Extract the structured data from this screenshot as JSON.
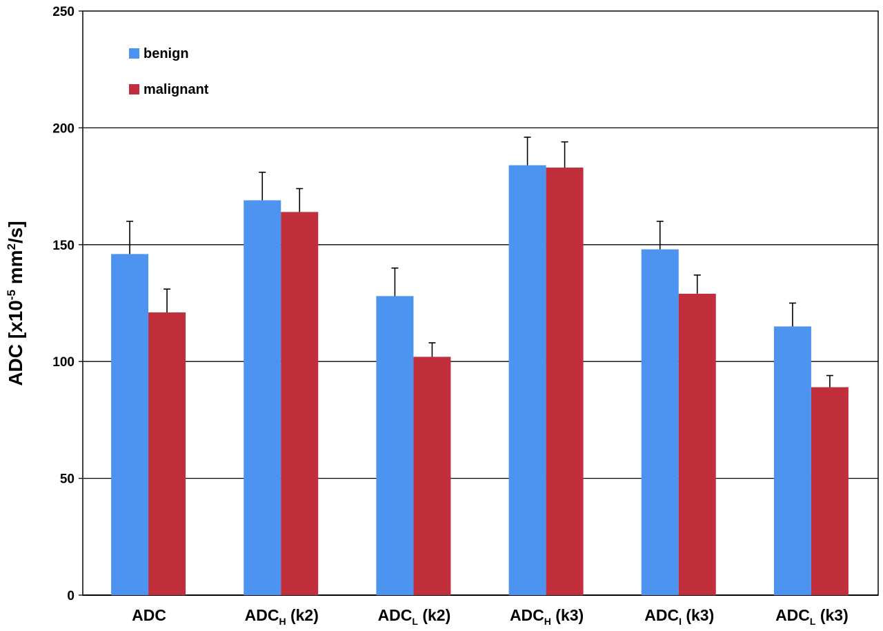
{
  "chart_data": {
    "type": "bar",
    "ylabel": {
      "prefix": "ADC [x10",
      "exp": "-5",
      "mid": " mm",
      "exp2": "2",
      "suffix": "/s]"
    },
    "xlabel": "",
    "ylim": [
      0,
      250
    ],
    "yticks": [
      0,
      50,
      100,
      150,
      200,
      250
    ],
    "grid": true,
    "legend_position": "top-left",
    "categories": [
      {
        "main": "ADC",
        "sub": "",
        "rest": ""
      },
      {
        "main": "ADC",
        "sub": "H",
        "rest": " (k2)"
      },
      {
        "main": "ADC",
        "sub": "L",
        "rest": " (k2)"
      },
      {
        "main": "ADC",
        "sub": "H",
        "rest": " (k3)"
      },
      {
        "main": "ADC",
        "sub": "I",
        "rest": " (k3)"
      },
      {
        "main": "ADC",
        "sub": "L",
        "rest": " (k3)"
      }
    ],
    "series": [
      {
        "name": "benign",
        "color": "#4d94f0",
        "values": [
          146,
          169,
          128,
          184,
          148,
          115
        ],
        "errors": [
          14,
          12,
          12,
          12,
          12,
          10
        ]
      },
      {
        "name": "malignant",
        "color": "#c12f3d",
        "values": [
          121,
          164,
          102,
          183,
          129,
          89
        ],
        "errors": [
          10,
          10,
          6,
          11,
          8,
          5
        ]
      }
    ]
  }
}
